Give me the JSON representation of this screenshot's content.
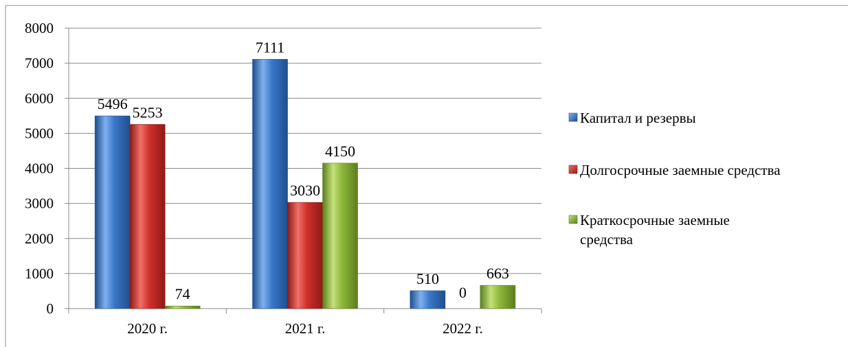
{
  "chart_data": {
    "type": "bar",
    "title": "",
    "xlabel": "",
    "ylabel": "",
    "categories": [
      "2020 г.",
      "2021 г.",
      "2022 г."
    ],
    "series": [
      {
        "name": "Капитал и резервы",
        "values": [
          5496,
          7111,
          510
        ],
        "color": "#3A78C8",
        "color_light": "#7FB0EE",
        "color_dark": "#1F4E8E"
      },
      {
        "name": "Долгосрочные заемные средства",
        "values": [
          5253,
          3030,
          0
        ],
        "color": "#D0302A",
        "color_light": "#F0706A",
        "color_dark": "#8E1A16"
      },
      {
        "name": "Краткосрочные заемные средства",
        "values": [
          74,
          4150,
          663
        ],
        "color": "#8DB83A",
        "color_light": "#C3E07A",
        "color_dark": "#5C7E1E"
      }
    ],
    "legend_lines": [
      [
        "Капитал и резервы"
      ],
      [
        "Долгосрочные заемные средства"
      ],
      [
        "Краткосрочные заемные",
        "средства"
      ]
    ],
    "ylim": [
      0,
      8000
    ],
    "yticks": [
      0,
      1000,
      2000,
      3000,
      4000,
      5000,
      6000,
      7000,
      8000
    ],
    "grid": true,
    "legend_position": "right"
  }
}
